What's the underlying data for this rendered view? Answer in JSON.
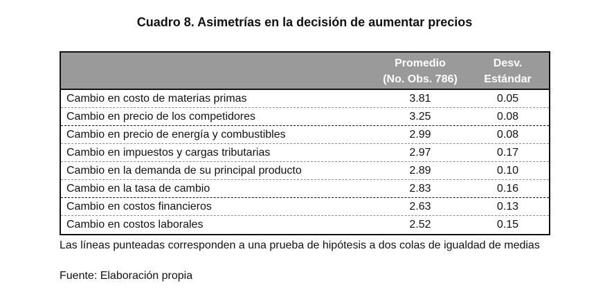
{
  "title": "Cuadro 8. Asimetrías en la decisión de aumentar precios",
  "table": {
    "headers": {
      "col1": "",
      "col2_line1": "Promedio",
      "col2_line2": "(No. Obs. 786)",
      "col3_line1": "Desv.",
      "col3_line2": "Estándar"
    },
    "rows": [
      {
        "label": "Cambio en costo de materias primas",
        "mean": "3.81",
        "sd": "0.05"
      },
      {
        "label": "Cambio en precio de los competidores",
        "mean": "3.25",
        "sd": "0.08"
      },
      {
        "label": "Cambio en precio de energía y combustibles",
        "mean": "2.99",
        "sd": "0.08"
      },
      {
        "label": "Cambio en impuestos y cargas tributarias",
        "mean": "2.97",
        "sd": "0.17"
      },
      {
        "label": "Cambio en la demanda de su principal producto",
        "mean": "2.89",
        "sd": "0.10"
      },
      {
        "label": "Cambio en la tasa de cambio",
        "mean": "2.83",
        "sd": "0.16"
      },
      {
        "label": "Cambio en costos financieros",
        "mean": "2.63",
        "sd": "0.13"
      },
      {
        "label": "Cambio en costos laborales",
        "mean": "2.52",
        "sd": "0.15"
      }
    ],
    "header_color": "#9a9a9a"
  },
  "note": "Las líneas punteadas corresponden a una prueba de hipótesis a dos colas de igualdad de medias",
  "source": "Fuente: Elaboración propia"
}
